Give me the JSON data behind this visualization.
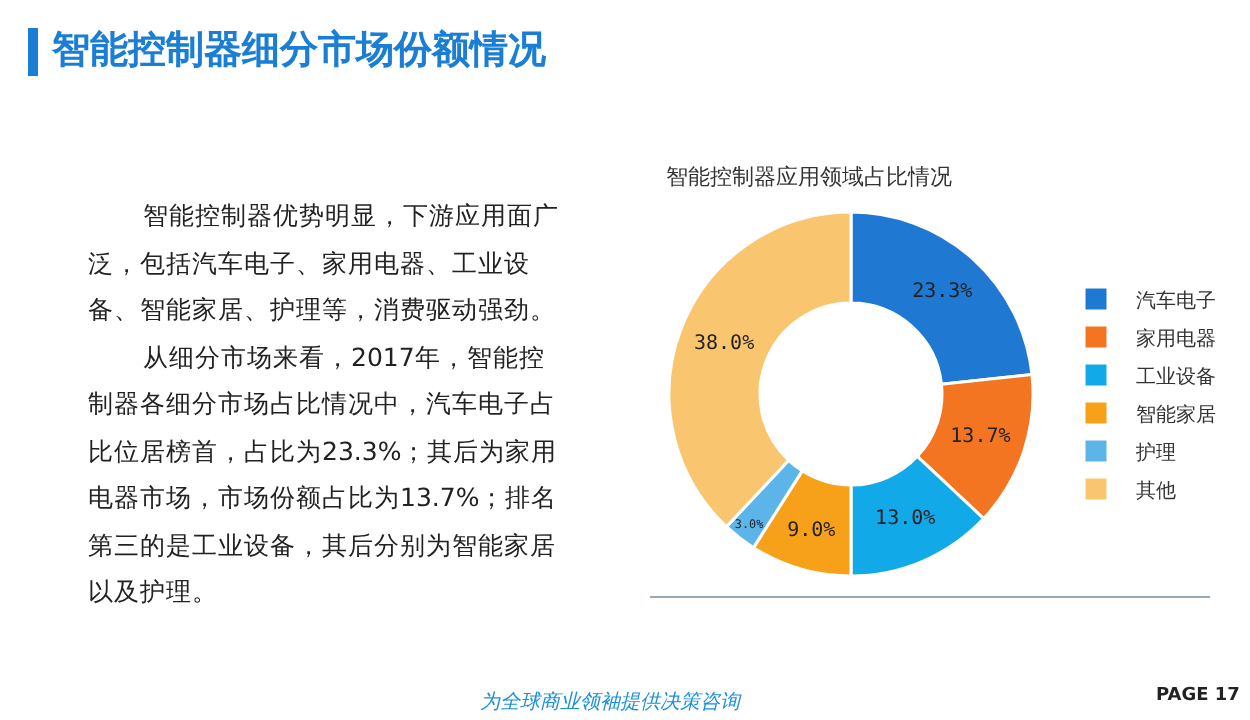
{
  "chart_data": {
    "type": "donut",
    "title": "智能控制器细分市场份额情况",
    "subtitle": "智能控制器应用领域占比情况",
    "categories": [
      "汽车电子",
      "家用电器",
      "工业设备",
      "智能家居",
      "护理",
      "其他"
    ],
    "values": [
      23.3,
      13.7,
      13.0,
      9.0,
      3.0,
      38.0
    ],
    "value_labels": [
      "23.3%",
      "13.7%",
      "13.0%",
      "9.0%",
      "3.0%",
      "38.0%"
    ],
    "colors": [
      "#1f78d1",
      "#f47521",
      "#12a9e9",
      "#f7a11a",
      "#5bb5e9",
      "#fac56f"
    ],
    "legend": "right",
    "annotations": [
      "智能控制器优势明显，下游应用面广泛，包括汽车电子、家用电器、工业设备、智能家居、护理等，消费驱动强劲。",
      "从细分市场来看，2017年，智能控制器各细分市场占比情况中，汽车电子占比位居榜首，占比为23.3%；其后为家用电器市场，市场份额占比为13.7%；排名第三的是工业设备，其后分别为智能家居以及护理。",
      "为全球商业领袖提供决策咨询",
      "PAGE 17"
    ]
  }
}
